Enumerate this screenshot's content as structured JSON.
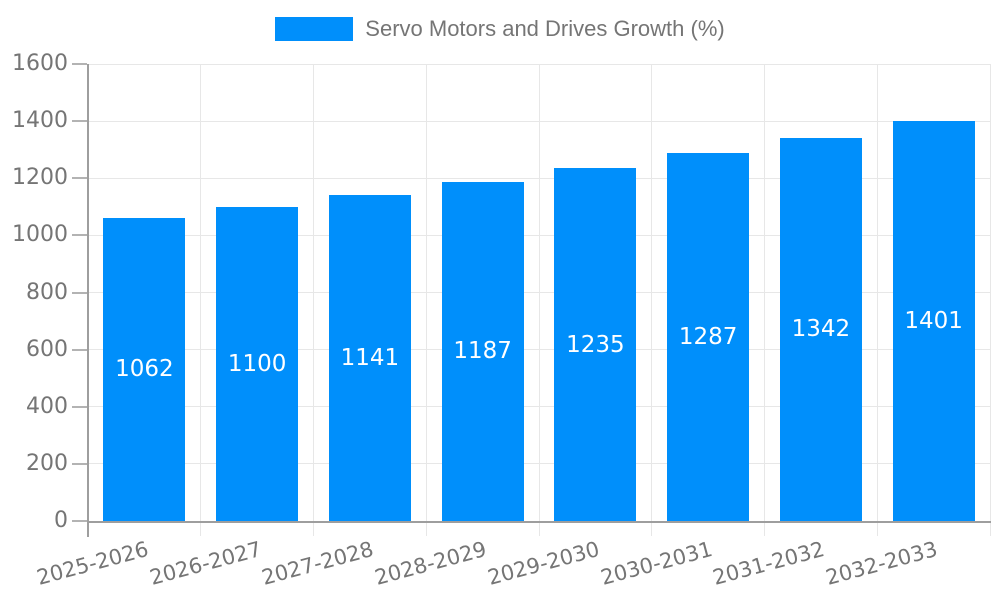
{
  "legend": {
    "label": "Servo Motors and Drives Growth (%)"
  },
  "chart_data": {
    "type": "bar",
    "title": "Servo Motors and Drives Growth (%)",
    "categories": [
      "2025-2026",
      "2026-2027",
      "2027-2028",
      "2028-2029",
      "2029-2030",
      "2030-2031",
      "2031-2032",
      "2032-2033"
    ],
    "series": [
      {
        "name": "Servo Motors and Drives Growth (%)",
        "values": [
          1062,
          1100,
          1141,
          1187,
          1235,
          1287,
          1342,
          1401
        ]
      }
    ],
    "xlabel": "",
    "ylabel": "",
    "ylim": [
      0,
      1600
    ],
    "yticks": [
      0,
      200,
      400,
      600,
      800,
      1000,
      1200,
      1400,
      1600
    ],
    "grid": true,
    "legend_position": "top",
    "value_label_position": "inside-center",
    "x_label_rotation_deg": -15
  },
  "colors": {
    "background": "#ffffff",
    "bar": "#008FFB",
    "gridline": "#e7e7e7",
    "axis_line": "#9e9e9e",
    "tick_mark": "#b3b3b3",
    "label_text": "#757575",
    "value_label_text": "#ffffff"
  }
}
